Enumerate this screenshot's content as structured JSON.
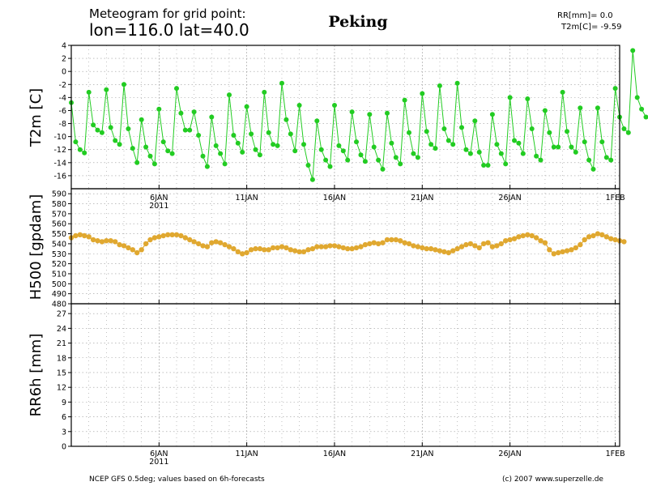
{
  "header": {
    "line1": "Meteogram for grid point:",
    "line2": "lon=116.0 lat=40.0",
    "location": "Peking",
    "rr_readout": "RR[mm]= 0.0",
    "t2m_readout": "T2m[C]= -9.59"
  },
  "footer": {
    "source": "NCEP GFS 0.5deg; values based on 6h-forecasts",
    "copyright": "(c) 2007 www.superzelle.de"
  },
  "colors": {
    "t2m": "#22cc22",
    "h500": "#e0a830",
    "frame": "#000000",
    "grid": "#9a9a9a"
  },
  "chart_data": [
    {
      "type": "line",
      "ylabel": "T2m [C]",
      "ylim": [
        -18,
        4
      ],
      "yticks": [
        "-16",
        "-14",
        "-12",
        "-10",
        "-8",
        "-6",
        "-4",
        "-2",
        "0",
        "2",
        "4"
      ],
      "x_start_day": 1,
      "x_step_days": 0.25,
      "series": [
        {
          "values": [
            -4.8,
            -10.8,
            -12,
            -12.5,
            -3.2,
            -8.2,
            -9,
            -9.4,
            -2.8,
            -8.6,
            -10.6,
            -11.2,
            -2,
            -8.8,
            -11.8,
            -14,
            -7.4,
            -11.6,
            -13,
            -14.2,
            -5.8,
            -10.8,
            -12.2,
            -12.6,
            -2.6,
            -6.4,
            -9,
            -9,
            -6.2,
            -9.8,
            -13,
            -14.6,
            -7,
            -11.4,
            -12.6,
            -14.2,
            -3.6,
            -9.8,
            -11,
            -12.4,
            -5.4,
            -9.6,
            -12,
            -12.8,
            -3.2,
            -9.4,
            -11.2,
            -11.4,
            -1.8,
            -7.4,
            -9.6,
            -12.2,
            -5.2,
            -11.2,
            -14.4,
            -16.6,
            -7.6,
            -12,
            -13.6,
            -14.6,
            -5.2,
            -11.4,
            -12.2,
            -13.6,
            -6.2,
            -10.8,
            -12.8,
            -13.8,
            -6.6,
            -11.6,
            -13.6,
            -15,
            -6.4,
            -11,
            -13.2,
            -14.2,
            -4.4,
            -9.4,
            -12.6,
            -13.2,
            -3.4,
            -9.2,
            -11.2,
            -11.8,
            -2.2,
            -8.8,
            -10.6,
            -11.2,
            -1.8,
            -8.6,
            -12,
            -12.6,
            -7.6,
            -12.4,
            -14.4,
            -14.4,
            -6.6,
            -11.2,
            -12.6,
            -14.2,
            -4,
            -10.6,
            -11,
            -12.6,
            -4.2,
            -8.8,
            -13,
            -13.6,
            -6,
            -9.4,
            -11.6,
            -11.6,
            -3.2,
            -9.2,
            -11.6,
            -12.4,
            -5.6,
            -10.8,
            -13.6,
            -15,
            -5.6,
            -10.8,
            -13.2,
            -13.6,
            -2.6,
            -7,
            -8.8,
            -9.4,
            3.2,
            -4,
            -5.8,
            -7
          ]
        }
      ]
    },
    {
      "type": "line",
      "ylabel": "H500 [gpdam]",
      "ylim": [
        480,
        595
      ],
      "yticks": [
        "480",
        "490",
        "500",
        "510",
        "520",
        "530",
        "540",
        "550",
        "560",
        "570",
        "580",
        "590"
      ],
      "x_start_day": 1,
      "x_step_days": 0.25,
      "series": [
        {
          "values": [
            546,
            548,
            549,
            548,
            547,
            544,
            543,
            542,
            543,
            543,
            542,
            539,
            538,
            536,
            534,
            531,
            534,
            540,
            544,
            546,
            547,
            548,
            549,
            549,
            549,
            548,
            546,
            544,
            542,
            540,
            538,
            537,
            541,
            542,
            541,
            539,
            537,
            535,
            532,
            530,
            531,
            534,
            535,
            535,
            534,
            534,
            536,
            536,
            537,
            536,
            534,
            533,
            532,
            532,
            534,
            535,
            537,
            537,
            537,
            538,
            538,
            537,
            536,
            535,
            535,
            536,
            537,
            539,
            540,
            541,
            540,
            541,
            544,
            544,
            544,
            543,
            541,
            540,
            538,
            537,
            536,
            535,
            535,
            534,
            533,
            532,
            531,
            533,
            535,
            537,
            539,
            540,
            538,
            536,
            540,
            541,
            537,
            538,
            540,
            543,
            544,
            545,
            547,
            548,
            549,
            548,
            546,
            543,
            541,
            534,
            530,
            531,
            532,
            533,
            534,
            536,
            539,
            544,
            547,
            548,
            550,
            549,
            547,
            545,
            544,
            543,
            542
          ]
        }
      ]
    },
    {
      "type": "bar",
      "ylabel": "RR6h [mm]",
      "ylim": [
        0,
        29
      ],
      "yticks": [
        "0",
        "3",
        "6",
        "9",
        "12",
        "15",
        "18",
        "21",
        "24",
        "27"
      ],
      "values": []
    }
  ],
  "xaxis": {
    "day_min": 1,
    "day_max": 32.25,
    "major_ticks": [
      {
        "day": 6,
        "label": "6JAN",
        "year": "2011"
      },
      {
        "day": 11,
        "label": "11JAN"
      },
      {
        "day": 16,
        "label": "16JAN"
      },
      {
        "day": 21,
        "label": "21JAN"
      },
      {
        "day": 26,
        "label": "26JAN"
      },
      {
        "day": 32,
        "label": "1FEB"
      }
    ]
  }
}
